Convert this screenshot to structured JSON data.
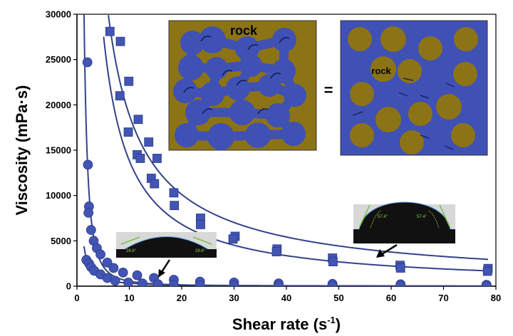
{
  "chart_data": {
    "type": "scatter",
    "xlabel": "Shear rate (s",
    "xlabel_sup": "-1",
    "xlabel_close": ")",
    "ylabel": "Viscosity (mPa·s)",
    "xlim": [
      0,
      80
    ],
    "ylim": [
      0,
      30000
    ],
    "xticks": [
      0,
      10,
      20,
      30,
      40,
      50,
      60,
      70,
      80
    ],
    "yticks": [
      0,
      5000,
      10000,
      15000,
      20000,
      25000,
      30000
    ],
    "grid": false,
    "colors": {
      "series": "#4255b4",
      "line": "#34418a",
      "rock": "#8c7316",
      "fluid": "#3f51b5",
      "contact_line": "#7cc242"
    },
    "series": [
      {
        "name": "squares-upper",
        "marker": "square",
        "points": [
          [
            6.3,
            28100
          ],
          [
            8.3,
            27000
          ],
          [
            9.9,
            22600
          ],
          [
            11.7,
            18400
          ],
          [
            13.7,
            15900
          ],
          [
            15.3,
            14100
          ],
          [
            18.5,
            10300
          ],
          [
            23.6,
            7500
          ],
          [
            30.2,
            5500
          ],
          [
            38.2,
            4100
          ],
          [
            48.8,
            3100
          ],
          [
            61.7,
            2300
          ],
          [
            78.5,
            1950
          ]
        ]
      },
      {
        "name": "squares-lower",
        "marker": "square",
        "points": [
          [
            8.2,
            21000
          ],
          [
            9.8,
            17000
          ],
          [
            11.5,
            14500
          ],
          [
            12.1,
            14100
          ],
          [
            14.2,
            11900
          ],
          [
            14.8,
            11300
          ],
          [
            18.6,
            8900
          ],
          [
            23.6,
            6800
          ],
          [
            29.8,
            5200
          ],
          [
            38.1,
            3800
          ],
          [
            48.9,
            2700
          ],
          [
            61.8,
            2000
          ],
          [
            78.4,
            1650
          ]
        ]
      },
      {
        "name": "circles-upper",
        "marker": "circle",
        "points": [
          [
            2.0,
            24700
          ],
          [
            2.1,
            13400
          ],
          [
            2.3,
            8800
          ],
          [
            2.2,
            8100
          ],
          [
            2.7,
            6200
          ],
          [
            3.2,
            5000
          ],
          [
            3.8,
            4200
          ],
          [
            4.5,
            3500
          ],
          [
            5.8,
            2600
          ],
          [
            7.0,
            2000
          ],
          [
            8.8,
            1500
          ],
          [
            11.5,
            1200
          ],
          [
            14.7,
            900
          ],
          [
            18.5,
            700
          ],
          [
            23.5,
            500
          ],
          [
            30.0,
            400
          ],
          [
            38.5,
            300
          ],
          [
            48.8,
            250
          ],
          [
            61.8,
            200
          ],
          [
            78.2,
            150
          ]
        ]
      },
      {
        "name": "circles-lower",
        "marker": "circle",
        "points": [
          [
            1.8,
            2900
          ],
          [
            2.3,
            2500
          ],
          [
            2.7,
            2100
          ],
          [
            3.3,
            1700
          ],
          [
            4.5,
            1300
          ],
          [
            5.8,
            900
          ],
          [
            7.3,
            600
          ],
          [
            9.8,
            400
          ],
          [
            12.5,
            300
          ],
          [
            15.5,
            200
          ],
          [
            18.5,
            150
          ],
          [
            23.5,
            100
          ],
          [
            30.0,
            80
          ],
          [
            38.5,
            60
          ],
          [
            48.8,
            50
          ],
          [
            61.8,
            40
          ],
          [
            78.2,
            30
          ]
        ]
      }
    ],
    "fit_curves": [
      {
        "name": "fit-squares-upper",
        "k": 150000,
        "n": -0.9,
        "xmin": 6.0,
        "xmax": 78.5
      },
      {
        "name": "fit-squares-lower",
        "k": 145000,
        "n": -1.02,
        "xmin": 5.1,
        "xmax": 78.5
      },
      {
        "name": "fit-circles-upper",
        "k": 55000,
        "n": -2.0,
        "xmin": 1.35,
        "xmax": 78.5
      },
      {
        "name": "fit-circles-lower",
        "k": 6500,
        "n": -1.3,
        "xmin": 1.35,
        "xmax": 78.5
      }
    ],
    "annotations": {
      "rock_label_1": "rock",
      "equals_sign": "=",
      "rock_label_2": "rock",
      "left_contact_angle_1": "28.6°",
      "left_contact_angle_2": "28.6°",
      "right_contact_angle_1": "57.4°",
      "right_contact_angle_2": "57.4°"
    }
  }
}
